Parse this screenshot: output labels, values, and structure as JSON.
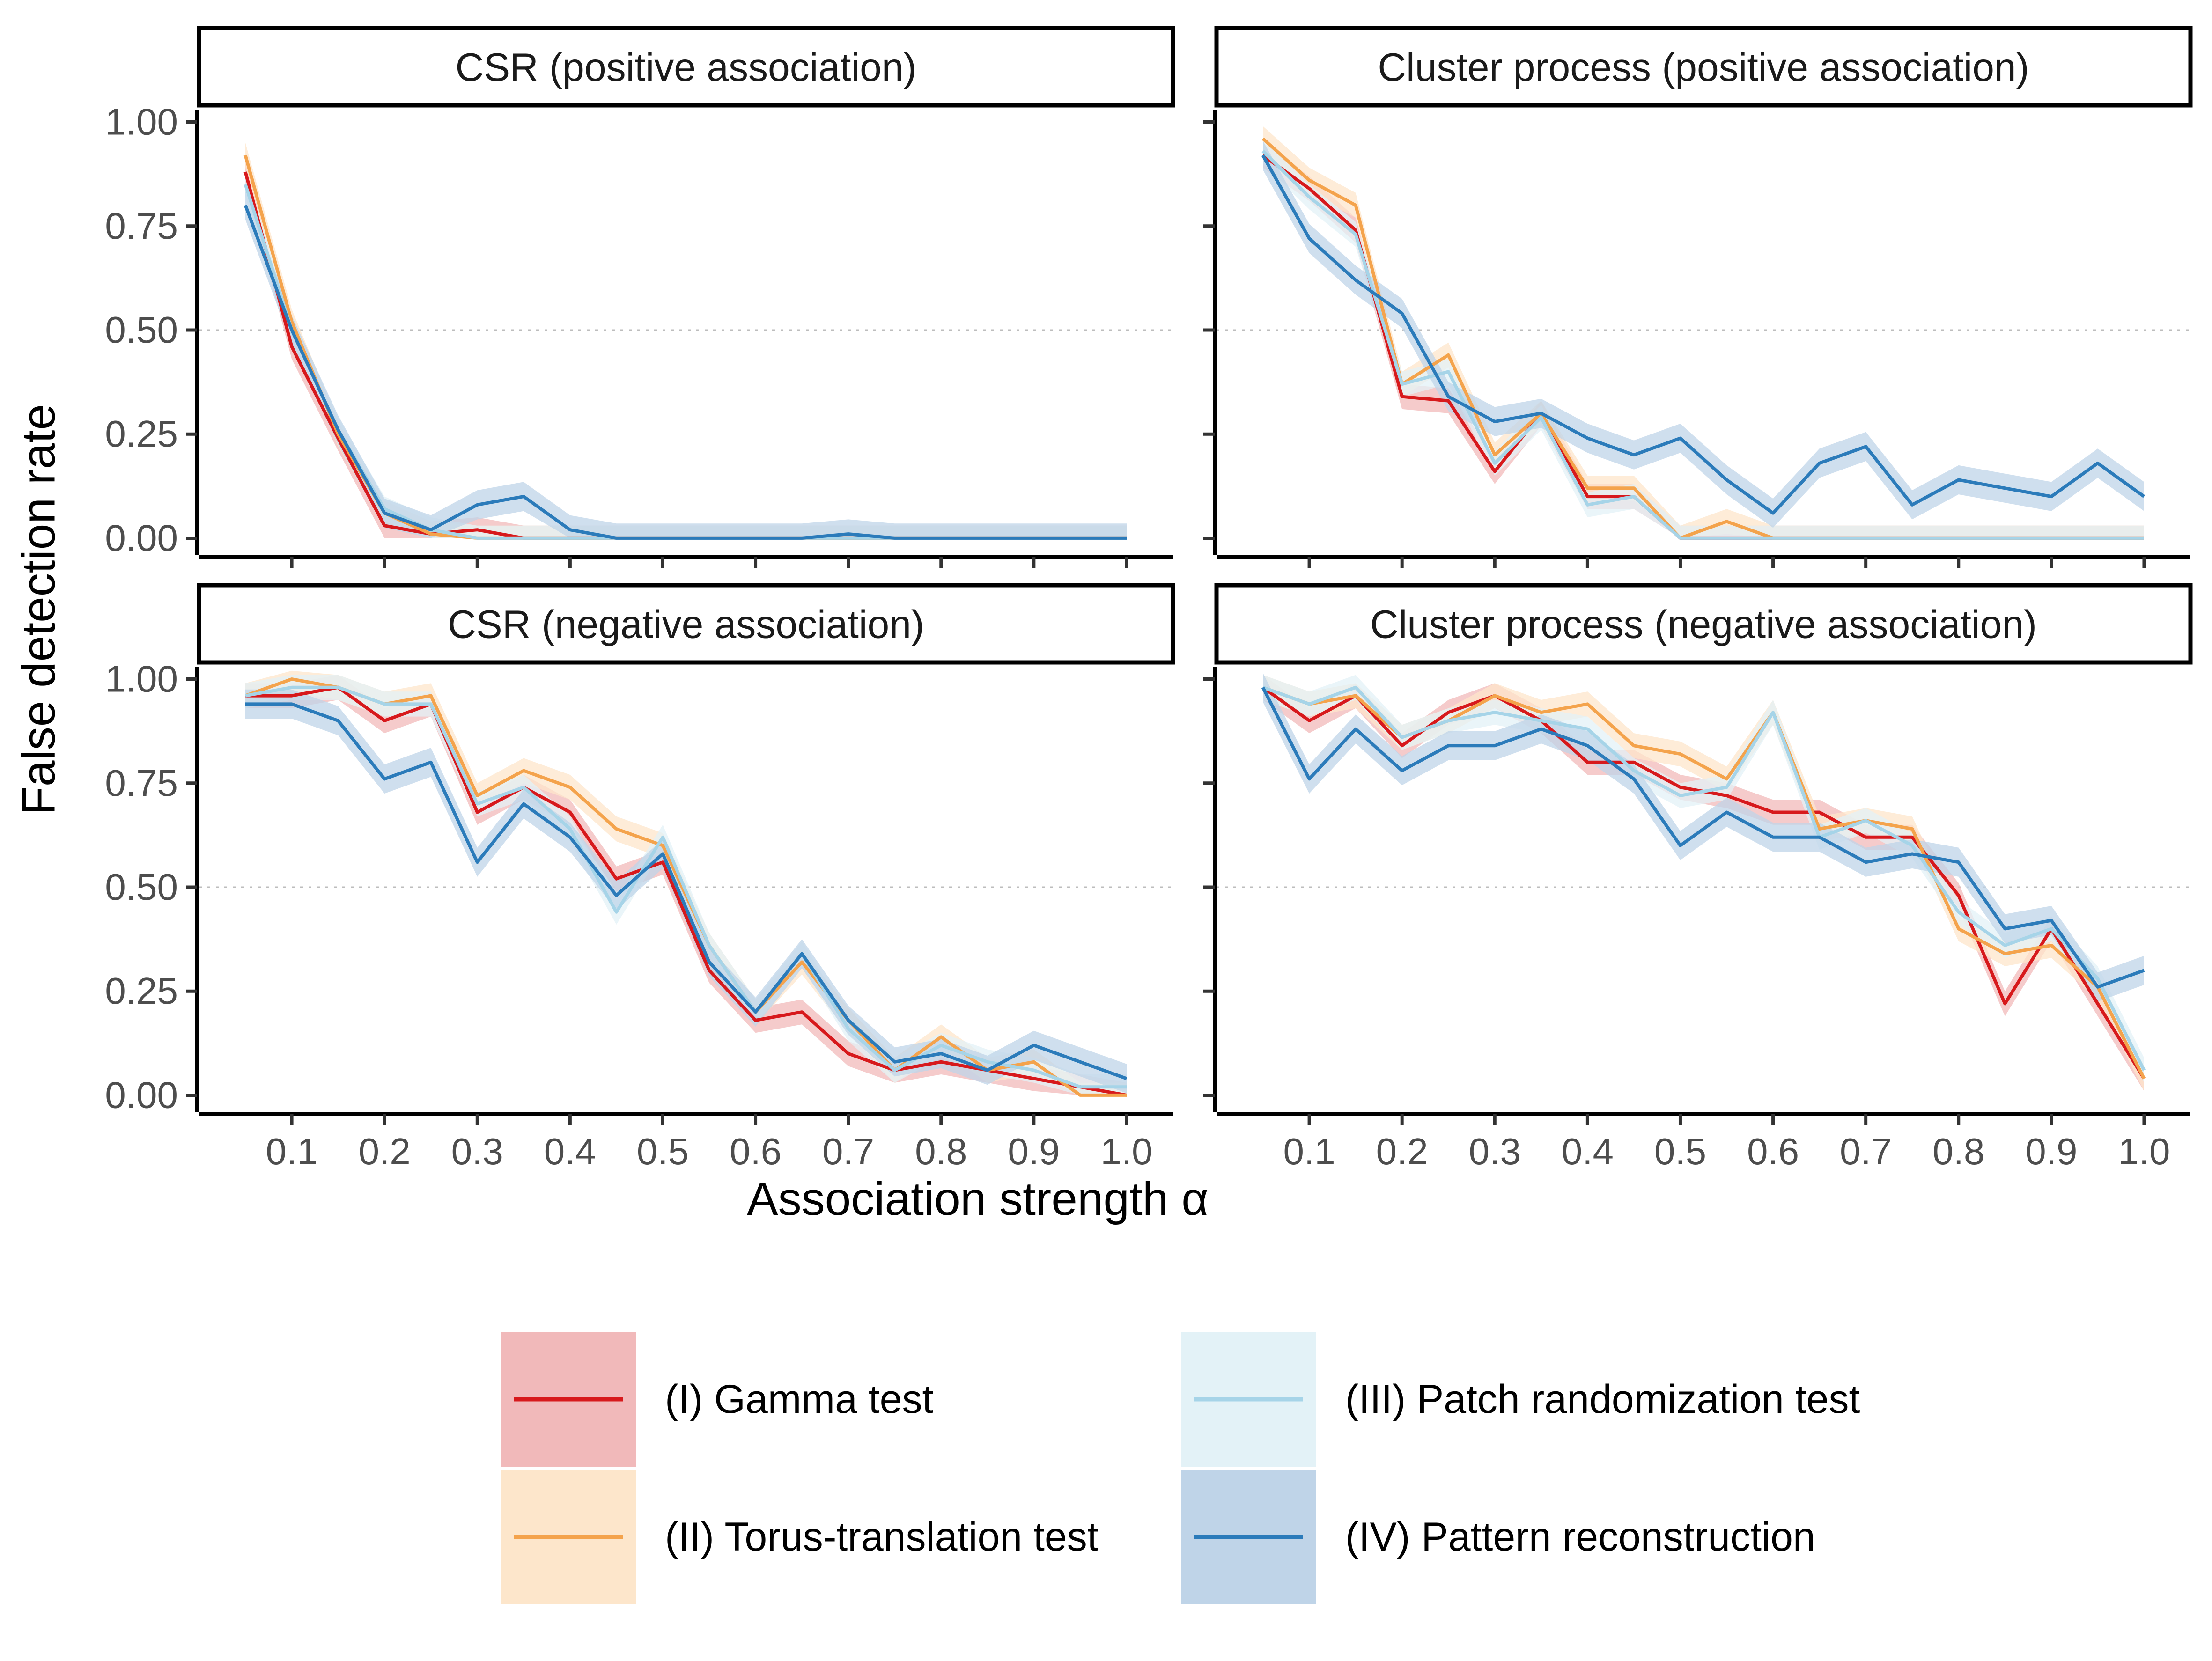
{
  "chart_data": {
    "type": "line",
    "ylabel": "False detection rate",
    "xlabel": "Association strength α",
    "x": [
      0.05,
      0.1,
      0.15,
      0.2,
      0.25,
      0.3,
      0.35,
      0.4,
      0.45,
      0.5,
      0.55,
      0.6,
      0.65,
      0.7,
      0.75,
      0.8,
      0.85,
      0.9,
      0.95,
      1.0
    ],
    "xticks": [
      "0.1",
      "0.2",
      "0.3",
      "0.4",
      "0.5",
      "0.6",
      "0.7",
      "0.8",
      "0.9",
      "1.0"
    ],
    "xtick_values": [
      0.1,
      0.2,
      0.3,
      0.4,
      0.5,
      0.6,
      0.7,
      0.8,
      0.9,
      1.0
    ],
    "yticks": [
      "0.00",
      "0.25",
      "0.50",
      "0.75",
      "1.00"
    ],
    "ytick_values": [
      0,
      0.25,
      0.5,
      0.75,
      1.0
    ],
    "ylim": [
      -0.04,
      1.04
    ],
    "xlim": [
      0.0,
      1.05
    ],
    "grid": "dotted horizontal at 0.50",
    "ribbons": "shaded confidence bands around each line",
    "legend": {
      "position": "bottom",
      "entries": [
        {
          "key": "gamma",
          "label": "(I) Gamma test",
          "color": "#d7191c",
          "fill": "#f1b9ba"
        },
        {
          "key": "torus",
          "label": "(II) Torus-translation test",
          "color": "#f4a34c",
          "fill": "#fde6cb"
        },
        {
          "key": "patch",
          "label": "(III) Patch randomization test",
          "color": "#a6d4e8",
          "fill": "#e3f2f7"
        },
        {
          "key": "recon",
          "label": "(IV) Pattern reconstruction",
          "color": "#2b7bba",
          "fill": "#bfd4e8"
        }
      ]
    },
    "panels": [
      {
        "title": "CSR (positive association)",
        "series": [
          {
            "key": "gamma",
            "values": [
              0.88,
              0.46,
              0.24,
              0.03,
              0.01,
              0.02,
              0,
              0,
              0,
              0,
              0,
              0,
              0,
              0,
              0,
              0,
              0,
              0,
              0,
              0
            ]
          },
          {
            "key": "torus",
            "values": [
              0.92,
              0.52,
              0.25,
              0.06,
              0.01,
              0,
              0,
              0,
              0,
              0,
              0,
              0,
              0,
              0,
              0,
              0,
              0,
              0,
              0,
              0
            ]
          },
          {
            "key": "patch",
            "values": [
              0.85,
              0.5,
              0.26,
              0.07,
              0.02,
              0,
              0,
              0,
              0,
              0,
              0,
              0,
              0,
              0,
              0,
              0,
              0,
              0,
              0,
              0
            ]
          },
          {
            "key": "recon",
            "values": [
              0.8,
              0.5,
              0.26,
              0.06,
              0.02,
              0.08,
              0.1,
              0.02,
              0,
              0,
              0,
              0,
              0,
              0.01,
              0,
              0,
              0,
              0,
              0,
              0
            ]
          }
        ]
      },
      {
        "title": "Cluster process (positive association)",
        "series": [
          {
            "key": "gamma",
            "values": [
              0.92,
              0.84,
              0.74,
              0.34,
              0.33,
              0.16,
              0.3,
              0.1,
              0.1,
              0,
              0,
              0,
              0,
              0,
              0,
              0,
              0,
              0,
              0,
              0
            ]
          },
          {
            "key": "torus",
            "values": [
              0.96,
              0.86,
              0.8,
              0.37,
              0.44,
              0.2,
              0.3,
              0.12,
              0.12,
              0,
              0.04,
              0,
              0,
              0,
              0,
              0,
              0,
              0,
              0,
              0
            ]
          },
          {
            "key": "patch",
            "values": [
              0.93,
              0.82,
              0.73,
              0.37,
              0.4,
              0.18,
              0.29,
              0.08,
              0.1,
              0,
              0,
              0,
              0,
              0,
              0,
              0,
              0,
              0,
              0,
              0
            ]
          },
          {
            "key": "recon",
            "values": [
              0.92,
              0.72,
              0.62,
              0.54,
              0.34,
              0.28,
              0.3,
              0.24,
              0.2,
              0.24,
              0.14,
              0.06,
              0.18,
              0.22,
              0.08,
              0.14,
              0.12,
              0.1,
              0.18,
              0.1
            ]
          }
        ]
      },
      {
        "title": "CSR (negative association)",
        "series": [
          {
            "key": "gamma",
            "values": [
              0.96,
              0.96,
              0.98,
              0.9,
              0.94,
              0.68,
              0.74,
              0.68,
              0.52,
              0.56,
              0.3,
              0.18,
              0.2,
              0.1,
              0.06,
              0.08,
              0.06,
              0.04,
              0.02,
              0.0
            ]
          },
          {
            "key": "torus",
            "values": [
              0.96,
              1.0,
              0.98,
              0.94,
              0.96,
              0.72,
              0.78,
              0.74,
              0.64,
              0.6,
              0.36,
              0.2,
              0.32,
              0.18,
              0.06,
              0.14,
              0.06,
              0.08,
              0.0,
              0.0
            ]
          },
          {
            "key": "patch",
            "values": [
              0.96,
              0.98,
              0.98,
              0.94,
              0.94,
              0.7,
              0.74,
              0.64,
              0.44,
              0.62,
              0.36,
              0.2,
              0.34,
              0.16,
              0.06,
              0.12,
              0.08,
              0.06,
              0.02,
              0.02
            ]
          },
          {
            "key": "recon",
            "values": [
              0.94,
              0.94,
              0.9,
              0.76,
              0.8,
              0.56,
              0.7,
              0.62,
              0.48,
              0.58,
              0.32,
              0.2,
              0.34,
              0.18,
              0.08,
              0.1,
              0.06,
              0.12,
              0.08,
              0.04
            ]
          }
        ]
      },
      {
        "title": "Cluster process (negative association)",
        "series": [
          {
            "key": "gamma",
            "values": [
              0.98,
              0.9,
              0.96,
              0.84,
              0.92,
              0.96,
              0.9,
              0.8,
              0.8,
              0.74,
              0.72,
              0.68,
              0.68,
              0.62,
              0.62,
              0.48,
              0.22,
              0.4,
              0.22,
              0.04
            ]
          },
          {
            "key": "torus",
            "values": [
              0.98,
              0.94,
              0.96,
              0.86,
              0.9,
              0.96,
              0.92,
              0.94,
              0.84,
              0.82,
              0.76,
              0.92,
              0.64,
              0.66,
              0.64,
              0.4,
              0.34,
              0.36,
              0.26,
              0.04
            ]
          },
          {
            "key": "patch",
            "values": [
              0.98,
              0.94,
              0.98,
              0.86,
              0.9,
              0.92,
              0.9,
              0.88,
              0.78,
              0.72,
              0.74,
              0.92,
              0.62,
              0.66,
              0.6,
              0.44,
              0.36,
              0.4,
              0.28,
              0.06
            ]
          },
          {
            "key": "recon",
            "values": [
              0.98,
              0.76,
              0.88,
              0.78,
              0.84,
              0.84,
              0.88,
              0.84,
              0.76,
              0.6,
              0.68,
              0.62,
              0.62,
              0.56,
              0.58,
              0.56,
              0.4,
              0.42,
              0.26,
              0.3
            ]
          }
        ]
      }
    ]
  }
}
